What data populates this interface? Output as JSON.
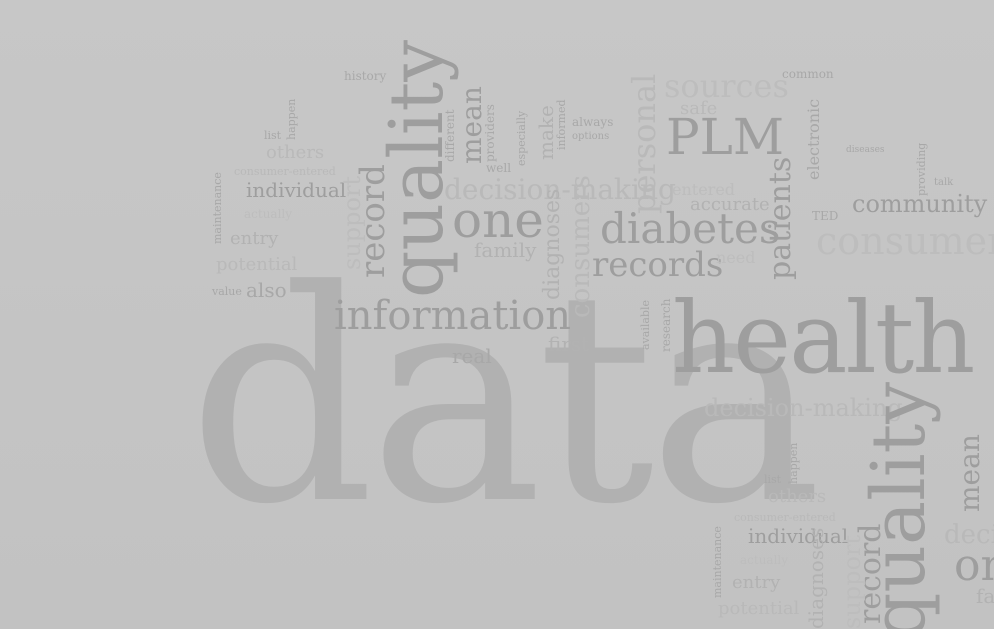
{
  "word_cloud": {
    "words": {
      "data": "data",
      "health": "health",
      "information": "information",
      "quality": "quality",
      "one": "one",
      "PLM": "PLM",
      "diabetes": "diabetes",
      "records": "records",
      "record": "record",
      "patients": "patients",
      "decision_making": "decision-making",
      "personal": "personal",
      "consumer": "consumer",
      "community": "community",
      "sources": "sources",
      "individual": "individual",
      "mean": "mean",
      "entry": "entry",
      "family": "family",
      "real": "real",
      "first": "first",
      "also": "also",
      "accurate": "accurate",
      "consumers": "consumers",
      "diagnoses": "diagnoses",
      "potential": "potential",
      "history": "history",
      "always": "always",
      "safe": "safe",
      "TED": "TED",
      "electronic": "electronic",
      "value": "value",
      "others": "others",
      "list": "list",
      "happen": "happen",
      "consumer_entered": "consumer-entered",
      "actually": "actually",
      "support": "support",
      "common": "common",
      "entered": "entered",
      "need": "need",
      "talk": "talk",
      "informed": "informed",
      "make": "make",
      "providers": "providers",
      "especially": "especially",
      "different": "different",
      "well": "well",
      "options": "options",
      "research": "research",
      "available": "available",
      "providing": "providing",
      "diseases": "diseases",
      "maintenance": "maintenance"
    }
  }
}
